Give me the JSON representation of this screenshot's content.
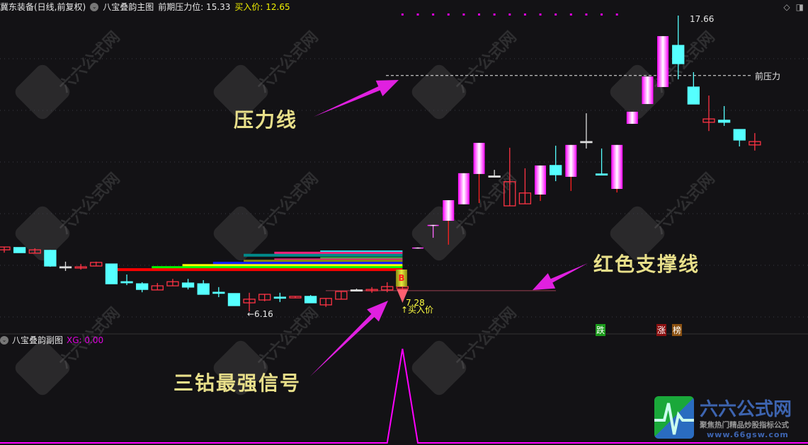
{
  "header": {
    "stock": "冀东装备(日线,前复权)",
    "indicator": "八宝叠韵主图",
    "pressure_label": "前期压力位: 15.33",
    "buy_label": "买入价: 12.65",
    "chevron_icon": "chevron-down-circle-icon",
    "right_icons": [
      "diamond-icon",
      "panel-toggle-icon"
    ]
  },
  "subheader": {
    "indicator": "八宝叠韵副图",
    "xg_label": "XG: 0.00"
  },
  "labels": {
    "high": "17.66",
    "low": "←6.16",
    "buy_price": "7.28",
    "buy_text": "↑买入价",
    "pressure_line": "前压力",
    "signal_b": "B",
    "fall": "跌",
    "rise": "涨",
    "rank": "榜"
  },
  "annotations": {
    "pressure": "压力线",
    "support": "红色支撑线",
    "signal": "三钻最强信号"
  },
  "watermark": {
    "name": "六六公式网",
    "slogan": "聚焦热门精品炒股指标公式",
    "url": "www.66gsw.com"
  },
  "colors": {
    "up_hollow": "#ff3344",
    "up_highlight": "#ff00ff",
    "down": "#55ffff",
    "doji": "#dddddd",
    "arrow": "#e020e0",
    "xg_line": "#ff00ff"
  },
  "chart_data": {
    "type": "candlestick",
    "ylim": [
      6.0,
      17.9
    ],
    "pressure_price": 15.33,
    "support_price": 6.96,
    "candles": [
      {
        "o": 8.55,
        "h": 8.66,
        "l": 8.44,
        "c": 8.66,
        "s": "u"
      },
      {
        "o": 8.64,
        "h": 8.64,
        "l": 8.44,
        "c": 8.44,
        "s": "d"
      },
      {
        "o": 8.42,
        "h": 8.61,
        "l": 8.42,
        "c": 8.55,
        "s": "u"
      },
      {
        "o": 8.53,
        "h": 8.55,
        "l": 7.89,
        "c": 7.92,
        "s": "d"
      },
      {
        "o": 7.89,
        "h": 8.09,
        "l": 7.73,
        "c": 7.89,
        "s": "x"
      },
      {
        "o": 7.84,
        "h": 8.0,
        "l": 7.78,
        "c": 7.89,
        "s": "u"
      },
      {
        "o": 7.92,
        "h": 8.09,
        "l": 7.92,
        "c": 8.06,
        "s": "u"
      },
      {
        "o": 8.0,
        "h": 8.0,
        "l": 7.23,
        "c": 7.23,
        "s": "d"
      },
      {
        "o": 7.31,
        "h": 7.59,
        "l": 7.18,
        "c": 7.31,
        "s": "xc"
      },
      {
        "o": 7.23,
        "h": 7.29,
        "l": 6.9,
        "c": 7.01,
        "s": "d"
      },
      {
        "o": 6.99,
        "h": 7.26,
        "l": 6.99,
        "c": 7.15,
        "s": "u"
      },
      {
        "o": 7.15,
        "h": 7.42,
        "l": 7.15,
        "c": 7.31,
        "s": "u"
      },
      {
        "o": 7.26,
        "h": 7.42,
        "l": 7.01,
        "c": 7.1,
        "s": "d"
      },
      {
        "o": 7.23,
        "h": 7.37,
        "l": 6.82,
        "c": 6.82,
        "s": "d"
      },
      {
        "o": 6.9,
        "h": 7.1,
        "l": 6.71,
        "c": 6.9,
        "s": "xc"
      },
      {
        "o": 6.85,
        "h": 6.85,
        "l": 6.38,
        "c": 6.38,
        "s": "d"
      },
      {
        "o": 6.49,
        "h": 6.88,
        "l": 6.16,
        "c": 6.63,
        "s": "u"
      },
      {
        "o": 6.6,
        "h": 6.82,
        "l": 6.55,
        "c": 6.82,
        "s": "u"
      },
      {
        "o": 6.71,
        "h": 6.88,
        "l": 6.52,
        "c": 6.71,
        "s": "xc"
      },
      {
        "o": 6.68,
        "h": 6.74,
        "l": 6.68,
        "c": 6.74,
        "s": "u"
      },
      {
        "o": 6.74,
        "h": 6.79,
        "l": 6.49,
        "c": 6.49,
        "s": "d"
      },
      {
        "o": 6.41,
        "h": 6.66,
        "l": 6.33,
        "c": 6.66,
        "s": "u"
      },
      {
        "o": 6.63,
        "h": 6.93,
        "l": 6.63,
        "c": 6.93,
        "s": "u"
      },
      {
        "o": 6.99,
        "h": 7.04,
        "l": 6.93,
        "c": 6.99,
        "s": "x"
      },
      {
        "o": 6.96,
        "h": 7.1,
        "l": 6.88,
        "c": 7.01,
        "s": "u"
      },
      {
        "o": 6.99,
        "h": 7.29,
        "l": 6.9,
        "c": 7.12,
        "s": "u"
      },
      {
        "o": 7.04,
        "h": 7.15,
        "l": 7.01,
        "c": 7.12,
        "s": "u"
      },
      {
        "o": 8.62,
        "h": 8.64,
        "l": 8.62,
        "c": 8.64,
        "s": "g"
      },
      {
        "o": 9.5,
        "h": 9.52,
        "l": 9.02,
        "c": 9.52,
        "s": "g"
      },
      {
        "o": 9.68,
        "h": 10.48,
        "l": 8.75,
        "c": 10.48,
        "s": "g"
      },
      {
        "o": 10.32,
        "h": 11.53,
        "l": 10.32,
        "c": 11.53,
        "s": "g"
      },
      {
        "o": 11.5,
        "h": 12.71,
        "l": 10.37,
        "c": 12.71,
        "s": "g"
      },
      {
        "o": 11.42,
        "h": 11.66,
        "l": 11.42,
        "c": 11.42,
        "s": "x"
      },
      {
        "o": 10.26,
        "h": 12.52,
        "l": 10.26,
        "c": 11.2,
        "s": "u"
      },
      {
        "o": 10.34,
        "h": 11.72,
        "l": 10.34,
        "c": 10.76,
        "s": "u"
      },
      {
        "o": 10.7,
        "h": 11.83,
        "l": 10.45,
        "c": 11.83,
        "s": "g"
      },
      {
        "o": 11.83,
        "h": 12.6,
        "l": 11.22,
        "c": 11.47,
        "s": "d"
      },
      {
        "o": 11.39,
        "h": 12.63,
        "l": 10.84,
        "c": 12.63,
        "s": "g"
      },
      {
        "o": 12.76,
        "h": 13.86,
        "l": 12.49,
        "c": 12.76,
        "s": "x"
      },
      {
        "o": 11.5,
        "h": 12.49,
        "l": 11.5,
        "c": 11.5,
        "s": "xc"
      },
      {
        "o": 10.92,
        "h": 12.63,
        "l": 10.78,
        "c": 12.63,
        "s": "g"
      },
      {
        "o": 13.45,
        "h": 13.92,
        "l": 13.45,
        "c": 13.92,
        "s": "g"
      },
      {
        "o": 14.22,
        "h": 15.29,
        "l": 14.22,
        "c": 15.29,
        "s": "g"
      },
      {
        "o": 14.88,
        "h": 16.86,
        "l": 14.88,
        "c": 16.86,
        "s": "g"
      },
      {
        "o": 16.5,
        "h": 17.66,
        "l": 15.18,
        "c": 15.79,
        "s": "d"
      },
      {
        "o": 14.88,
        "h": 15.46,
        "l": 14.22,
        "c": 14.22,
        "s": "d"
      },
      {
        "o": 13.51,
        "h": 14.55,
        "l": 13.17,
        "c": 13.64,
        "s": "u"
      },
      {
        "o": 13.59,
        "h": 14.14,
        "l": 13.37,
        "c": 13.51,
        "s": "d"
      },
      {
        "o": 13.23,
        "h": 13.23,
        "l": 12.57,
        "c": 12.82,
        "s": "d"
      },
      {
        "o": 12.63,
        "h": 13.09,
        "l": 12.41,
        "c": 12.76,
        "s": "u"
      }
    ],
    "bands": [
      {
        "price": 8.47,
        "start": 21,
        "color": "#22eeff"
      },
      {
        "price": 8.42,
        "start": 18,
        "color": "#ff1f7a"
      },
      {
        "price": 8.34,
        "start": 16,
        "color": "#008a8a"
      },
      {
        "price": 8.21,
        "start": 21,
        "color": "#40c040"
      },
      {
        "price": 8.16,
        "start": 18,
        "color": "#e0207a"
      },
      {
        "price": 8.11,
        "start": 16,
        "color": "#8a8a10"
      },
      {
        "price": 8.03,
        "start": 14,
        "color": "#1020ff"
      },
      {
        "price": 7.94,
        "start": 12,
        "color": "#ffff00"
      },
      {
        "price": 7.86,
        "start": 10,
        "color": "#00ff00"
      },
      {
        "price": 7.78,
        "start": 7,
        "color": "#ff0000"
      }
    ],
    "band_end": 26,
    "signal_index": 26,
    "top_dots_from": 26,
    "top_dots_to": 40,
    "xg": {
      "ylim": [
        0,
        1
      ],
      "values_nonzero": [
        {
          "index": 26,
          "value": 1
        }
      ]
    }
  }
}
